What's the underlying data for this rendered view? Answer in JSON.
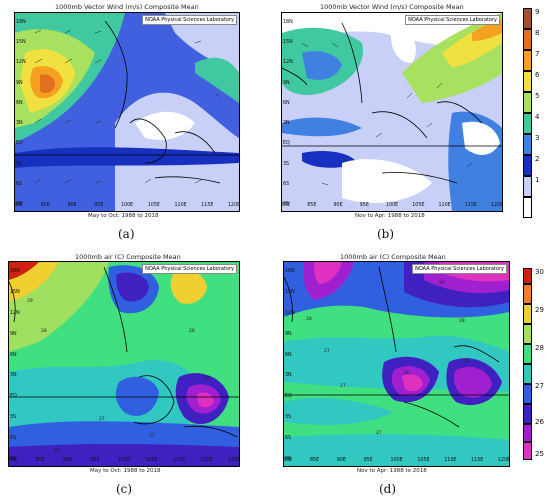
{
  "panels": [
    {
      "id": "a",
      "title": "1000mb Vector Wind (m/s) Composite Mean",
      "noaa": "NOAA Physical Sciences Laboratory",
      "subtitle": "May to Oct: 1988 to 2018",
      "label": "(a)"
    },
    {
      "id": "b",
      "title": "1000mb Vector Wind (m/s) Composite Mean",
      "noaa": "NOAA Physical Sciences Laboratory",
      "subtitle": "Nov to Apr: 1988 to 2018",
      "label": "(b)"
    },
    {
      "id": "c",
      "title": "1000mb air (C) Composite Mean",
      "noaa": "NOAA Physical Sciences Laboratory",
      "subtitle": "May to Oct: 1988 to 2018",
      "label": "(c)"
    },
    {
      "id": "d",
      "title": "1000mb air (C) Composite Mean",
      "noaa": "NOAA Physical Sciences Laboratory",
      "subtitle": "Nov to Apr: 1988 to 2018",
      "label": "(d)"
    }
  ],
  "lat_labels": [
    "18N",
    "15N",
    "12N",
    "9N",
    "6N",
    "3N",
    "EQ",
    "3S",
    "6S",
    "9S"
  ],
  "lon_labels": [
    "80E",
    "85E",
    "90E",
    "95E",
    "100E",
    "105E",
    "110E",
    "115E",
    "120E"
  ],
  "wind_colorbar": {
    "ticks": [
      "9",
      "8",
      "7",
      "6",
      "5",
      "4",
      "3",
      "2",
      "1"
    ],
    "colors": [
      "#a0522d",
      "#e07020",
      "#f4a020",
      "#f0e040",
      "#a8e060",
      "#40c8a0",
      "#4080e0",
      "#1830c0",
      "#c8d0f8",
      "#ffffff"
    ]
  },
  "temp_colorbar": {
    "ticks": [
      "30",
      "29",
      "28",
      "27",
      "26",
      "25"
    ],
    "colors": [
      "#d02010",
      "#f08030",
      "#f0d030",
      "#a0e060",
      "#40e080",
      "#30c8c0",
      "#3060e0",
      "#4020c0",
      "#a020d0",
      "#e030c0"
    ]
  },
  "contour_labels_c": [
    "29",
    "28",
    "27",
    "28",
    "26",
    "27",
    "27"
  ],
  "contour_labels_d": [
    "28",
    "26",
    "27",
    "27",
    "27",
    "26",
    "26",
    "28"
  ]
}
